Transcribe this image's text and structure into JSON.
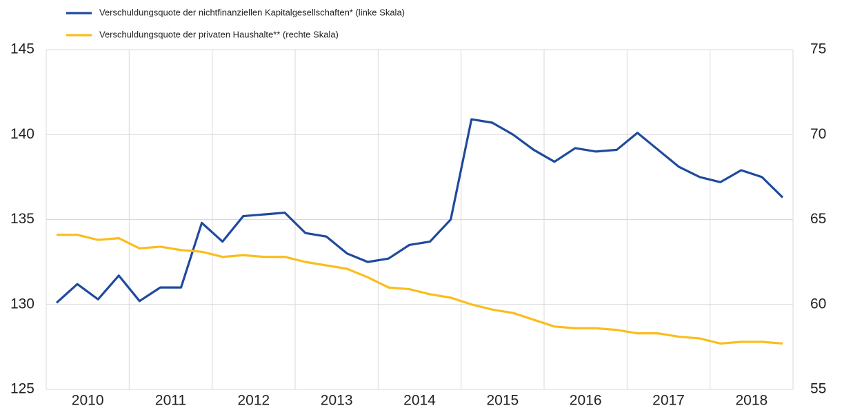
{
  "chart_data": {
    "type": "line",
    "categories": [
      "2010",
      null,
      null,
      null,
      "2011",
      null,
      null,
      null,
      "2012",
      null,
      null,
      null,
      "2013",
      null,
      null,
      null,
      "2014",
      null,
      null,
      null,
      "2015",
      null,
      null,
      null,
      "2016",
      null,
      null,
      null,
      "2017",
      null,
      null,
      null,
      "2018",
      null,
      null,
      null
    ],
    "series": [
      {
        "name": "Verschuldungsquote der nichtfinanziellen Kapitalgesellschaften* (linke Skala)",
        "color": "#1f4a9c",
        "axis": "y",
        "values": [
          130.1,
          131.2,
          130.3,
          131.7,
          130.2,
          131.0,
          131.0,
          134.8,
          133.7,
          135.2,
          135.3,
          135.4,
          134.2,
          134.0,
          133.0,
          132.5,
          132.7,
          133.5,
          133.7,
          135.0,
          140.9,
          140.7,
          140.0,
          139.1,
          138.4,
          139.2,
          139.0,
          139.1,
          140.1,
          139.1,
          138.1,
          137.5,
          137.2,
          137.9,
          137.5,
          136.3
        ]
      },
      {
        "name": "Verschuldungsquote der privaten Haushalte** (rechte Skala)",
        "color": "#fbbd1c",
        "axis": "y2",
        "values": [
          64.1,
          64.1,
          63.8,
          63.9,
          63.3,
          63.4,
          63.2,
          63.1,
          62.8,
          62.9,
          62.8,
          62.8,
          62.5,
          62.3,
          62.1,
          61.6,
          61.0,
          60.9,
          60.6,
          60.4,
          60.0,
          59.7,
          59.5,
          59.1,
          58.7,
          58.6,
          58.6,
          58.5,
          58.3,
          58.3,
          58.1,
          58.0,
          57.7,
          57.8,
          57.8,
          57.7
        ]
      }
    ],
    "ylim": [
      125,
      145
    ],
    "yticks": [
      125,
      130,
      135,
      140,
      145
    ],
    "y2lim": [
      55,
      75
    ],
    "y2ticks": [
      55,
      60,
      65,
      70,
      75
    ],
    "grid": true
  }
}
